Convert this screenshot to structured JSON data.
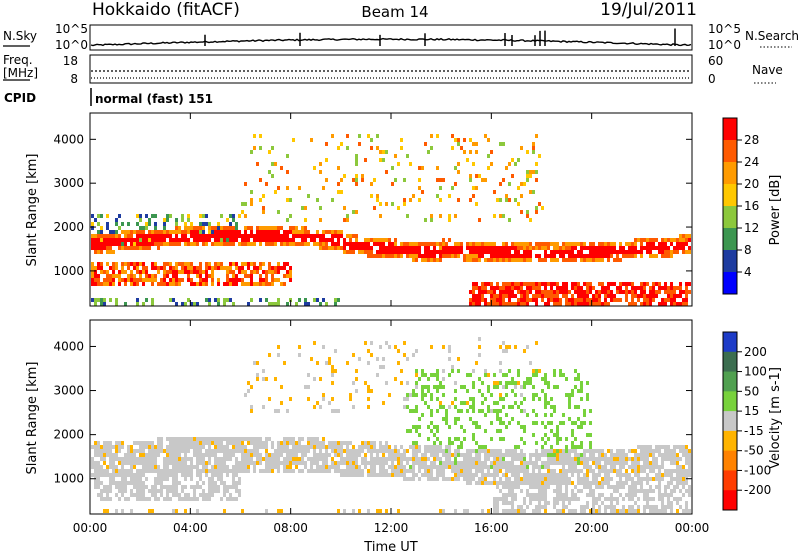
{
  "header": {
    "title": "Hokkaido (fitACF)",
    "beam": "Beam 14",
    "date": "19/Jul/2011"
  },
  "status_panel": {
    "nsky_label": "N.Sky",
    "nsearch_label": "N.Search",
    "freq_label_top": "Freq.",
    "freq_label_unit": "[MHz]",
    "nave_label": "Nave",
    "cpid_label": "CPID",
    "left_axis_noise": [
      "10^5",
      "10^0"
    ],
    "right_axis_noise": [
      "10^5",
      "10^0"
    ],
    "left_axis_freq": [
      "18",
      "8"
    ],
    "right_axis_nave": [
      "60",
      "0"
    ],
    "cpid_text": "normal (fast) 151"
  },
  "x_axis": {
    "label": "Time UT",
    "ticks": [
      "00:00",
      "04:00",
      "08:00",
      "12:00",
      "16:00",
      "20:00",
      "00:00"
    ]
  },
  "chart_data": [
    {
      "type": "heatmap",
      "panel": "power",
      "ylabel": "Slant Range [km]",
      "yticks": [
        1000,
        2000,
        3000,
        4000
      ],
      "ylim": [
        200,
        4600
      ],
      "xlim_hours": [
        0,
        24
      ],
      "colorbar_label": "Power [dB]",
      "colorbar_ticks": [
        "28",
        "24",
        "20",
        "16",
        "12",
        "8",
        "4"
      ],
      "colorbar_colors": [
        "#ff0000",
        "#ff5a00",
        "#ff9b00",
        "#ffc800",
        "#8cc83c",
        "#3c9650",
        "#1e3ca0",
        "#0000ff"
      ],
      "bands": [
        {
          "range_km": [
            1500,
            1900
          ],
          "hours": [
            0,
            24
          ],
          "intensity": "high"
        },
        {
          "range_km": [
            700,
            1200
          ],
          "hours": [
            0,
            8
          ],
          "intensity": "high"
        },
        {
          "range_km": [
            300,
            700
          ],
          "hours": [
            16,
            24
          ],
          "intensity": "high"
        },
        {
          "range_km": [
            2200,
            4200
          ],
          "hours": [
            6,
            18
          ],
          "intensity": "moderate"
        }
      ]
    },
    {
      "type": "heatmap",
      "panel": "velocity",
      "ylabel": "Slant Range [km]",
      "yticks": [
        1000,
        2000,
        3000,
        4000
      ],
      "ylim": [
        200,
        4600
      ],
      "xlim_hours": [
        0,
        24
      ],
      "colorbar_label": "Velocity [m s-1]",
      "colorbar_ticks": [
        "200",
        "100",
        "50",
        "15",
        "-15",
        "-50",
        "-100",
        "-200"
      ],
      "colorbar_colors": [
        "#1e3cc8",
        "#3c6e50",
        "#50a050",
        "#78d23c",
        "#c8c8c8",
        "#ffb400",
        "#ff8200",
        "#ff3c00",
        "#ff0000"
      ],
      "bands": [
        {
          "range_km": [
            500,
            1900
          ],
          "hours": [
            0,
            24
          ],
          "velocity": "near-zero"
        },
        {
          "range_km": [
            1300,
            3500
          ],
          "hours": [
            12.5,
            20
          ],
          "velocity": "positive"
        }
      ]
    }
  ]
}
